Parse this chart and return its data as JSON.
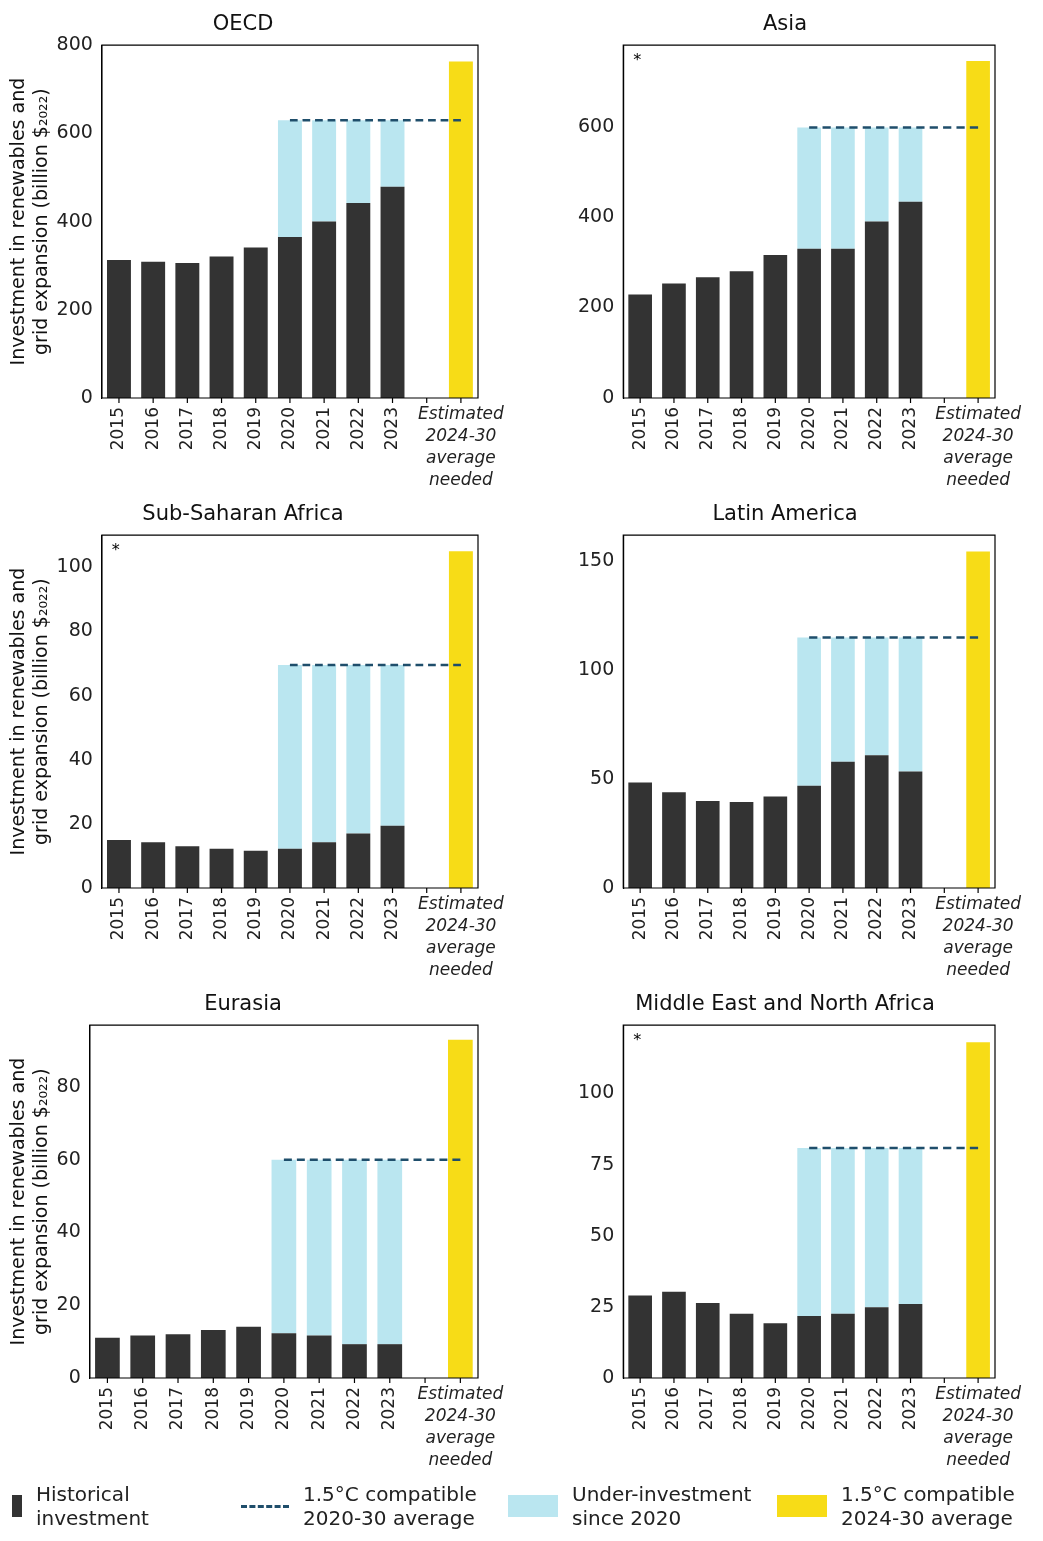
{
  "chart_data": [
    {
      "type": "bar",
      "stacked": true,
      "title": "OECD",
      "ylabel": "Investment in renewables and grid expansion (billion $₂₀₂₂)",
      "categories": [
        "2015",
        "2016",
        "2017",
        "2018",
        "2019",
        "2020",
        "2021",
        "2022",
        "2023",
        null,
        "Estimated 2024-30 average needed"
      ],
      "ylim": [
        0,
        800
      ],
      "yticks": [
        0,
        200,
        400,
        600,
        800
      ],
      "grid": false,
      "legend": "bottom",
      "series": [
        {
          "name": "Historical investment",
          "color": "#333333",
          "values": [
            313,
            309,
            306,
            321,
            341,
            365,
            400,
            442,
            479,
            null,
            null
          ]
        },
        {
          "name": "Under-investment since 2020",
          "color": "#bae6f0",
          "values": [
            null,
            null,
            null,
            null,
            null,
            265,
            230,
            188,
            151,
            null,
            null
          ]
        },
        {
          "name": "1.5°C compatible 2024-30 average",
          "color": "#f7dc17",
          "values": [
            null,
            null,
            null,
            null,
            null,
            null,
            null,
            null,
            null,
            null,
            763
          ]
        },
        {
          "name": "1.5°C compatible 2020-30 average",
          "type": "line",
          "color": "#1f4e6b",
          "line_style": "dashed",
          "marker": "none",
          "values": [
            null,
            null,
            null,
            null,
            null,
            630,
            630,
            630,
            630,
            630,
            630
          ]
        }
      ]
    },
    {
      "type": "bar",
      "stacked": true,
      "title": "Asia",
      "annotations": [
        "*"
      ],
      "categories": [
        "2015",
        "2016",
        "2017",
        "2018",
        "2019",
        "2020",
        "2021",
        "2022",
        "2023",
        null,
        "Estimated 2024-30 average needed"
      ],
      "ylim": [
        0,
        780
      ],
      "yticks": [
        0,
        200,
        400,
        600
      ],
      "grid": false,
      "series": [
        {
          "color": "#333333",
          "values": [
            229,
            253,
            267,
            280,
            316,
            330,
            330,
            390,
            434,
            null,
            null
          ]
        },
        {
          "color": "#bae6f0",
          "values": [
            null,
            null,
            null,
            null,
            null,
            268,
            268,
            208,
            164,
            null,
            null
          ]
        },
        {
          "color": "#f7dc17",
          "values": [
            null,
            null,
            null,
            null,
            null,
            null,
            null,
            null,
            null,
            null,
            745
          ]
        },
        {
          "type": "line",
          "color": "#1f4e6b",
          "line_style": "dashed",
          "marker": "none",
          "values": [
            null,
            null,
            null,
            null,
            null,
            598,
            598,
            598,
            598,
            598,
            598
          ]
        }
      ]
    },
    {
      "type": "bar",
      "stacked": true,
      "title": "Sub-Saharan Africa",
      "annotations": [
        "*"
      ],
      "ylabel": "Investment in renewables and grid expansion (billion $₂₀₂₂)",
      "categories": [
        "2015",
        "2016",
        "2017",
        "2018",
        "2019",
        "2020",
        "2021",
        "2022",
        "2023",
        null,
        "Estimated 2024-30 average needed"
      ],
      "ylim": [
        0,
        110
      ],
      "yticks": [
        0,
        20,
        40,
        60,
        80,
        100
      ],
      "grid": false,
      "series": [
        {
          "color": "#333333",
          "values": [
            15,
            14.3,
            13,
            12.2,
            11.6,
            12.2,
            14.3,
            17,
            19.4,
            null,
            null
          ]
        },
        {
          "color": "#bae6f0",
          "values": [
            null,
            null,
            null,
            null,
            null,
            57.3,
            55.2,
            52.5,
            50.1,
            null,
            null
          ]
        },
        {
          "color": "#f7dc17",
          "values": [
            null,
            null,
            null,
            null,
            null,
            null,
            null,
            null,
            null,
            null,
            105
          ]
        },
        {
          "type": "line",
          "color": "#1f4e6b",
          "line_style": "dashed",
          "marker": "none",
          "values": [
            null,
            null,
            null,
            null,
            null,
            69.5,
            69.5,
            69.5,
            69.5,
            69.5,
            69.5
          ]
        }
      ]
    },
    {
      "type": "bar",
      "stacked": true,
      "title": "Latin America",
      "categories": [
        "2015",
        "2016",
        "2017",
        "2018",
        "2019",
        "2020",
        "2021",
        "2022",
        "2023",
        null,
        "Estimated 2024-30 average needed"
      ],
      "ylim": [
        0,
        162
      ],
      "yticks": [
        0,
        50,
        100,
        150
      ],
      "grid": false,
      "series": [
        {
          "color": "#333333",
          "values": [
            48.5,
            44,
            40,
            39.5,
            42,
            47,
            58,
            61,
            53.5,
            null,
            null
          ]
        },
        {
          "color": "#bae6f0",
          "values": [
            null,
            null,
            null,
            null,
            null,
            68,
            57,
            54,
            61.5,
            null,
            null
          ]
        },
        {
          "color": "#f7dc17",
          "values": [
            null,
            null,
            null,
            null,
            null,
            null,
            null,
            null,
            null,
            null,
            154.5
          ]
        },
        {
          "type": "line",
          "color": "#1f4e6b",
          "line_style": "dashed",
          "marker": "none",
          "values": [
            null,
            null,
            null,
            null,
            null,
            115,
            115,
            115,
            115,
            115,
            115
          ]
        }
      ]
    },
    {
      "type": "bar",
      "stacked": true,
      "title": "Eurasia",
      "ylabel": "Investment in renewables and grid expansion (billion $₂₀₂₂)",
      "categories": [
        "2015",
        "2016",
        "2017",
        "2018",
        "2019",
        "2020",
        "2021",
        "2022",
        "2023",
        null,
        "Estimated 2024-30 average needed"
      ],
      "ylim": [
        0,
        97
      ],
      "yticks": [
        0,
        20,
        40,
        60,
        80
      ],
      "grid": false,
      "series": [
        {
          "color": "#333333",
          "values": [
            11.1,
            11.7,
            12,
            13.2,
            14.1,
            12.3,
            11.7,
            9.3,
            9.3,
            null,
            null
          ]
        },
        {
          "color": "#bae6f0",
          "values": [
            null,
            null,
            null,
            null,
            null,
            47.7,
            48.3,
            50.7,
            50.7,
            null,
            null
          ]
        },
        {
          "color": "#f7dc17",
          "values": [
            null,
            null,
            null,
            null,
            null,
            null,
            null,
            null,
            null,
            null,
            93
          ]
        },
        {
          "type": "line",
          "color": "#1f4e6b",
          "line_style": "dashed",
          "marker": "none",
          "values": [
            null,
            null,
            null,
            null,
            null,
            60,
            60,
            60,
            60,
            60,
            60
          ]
        }
      ]
    },
    {
      "type": "bar",
      "stacked": true,
      "title": "Middle East and North Africa",
      "annotations": [
        "*"
      ],
      "categories": [
        "2015",
        "2016",
        "2017",
        "2018",
        "2019",
        "2020",
        "2021",
        "2022",
        "2023",
        null,
        "Estimated 2024-30 average needed"
      ],
      "ylim": [
        0,
        124
      ],
      "yticks": [
        0,
        25,
        50,
        75,
        100
      ],
      "grid": false,
      "series": [
        {
          "color": "#333333",
          "values": [
            29,
            30.3,
            26.4,
            22.6,
            19.2,
            21.8,
            22.6,
            24.9,
            26,
            null,
            null
          ]
        },
        {
          "color": "#bae6f0",
          "values": [
            null,
            null,
            null,
            null,
            null,
            59,
            58.2,
            55.9,
            54.8,
            null,
            null
          ]
        },
        {
          "color": "#f7dc17",
          "values": [
            null,
            null,
            null,
            null,
            null,
            null,
            null,
            null,
            null,
            null,
            118
          ]
        },
        {
          "type": "line",
          "color": "#1f4e6b",
          "line_style": "dashed",
          "marker": "none",
          "values": [
            null,
            null,
            null,
            null,
            null,
            80.8,
            80.8,
            80.8,
            80.8,
            80.8,
            80.8
          ]
        }
      ]
    }
  ]
}
